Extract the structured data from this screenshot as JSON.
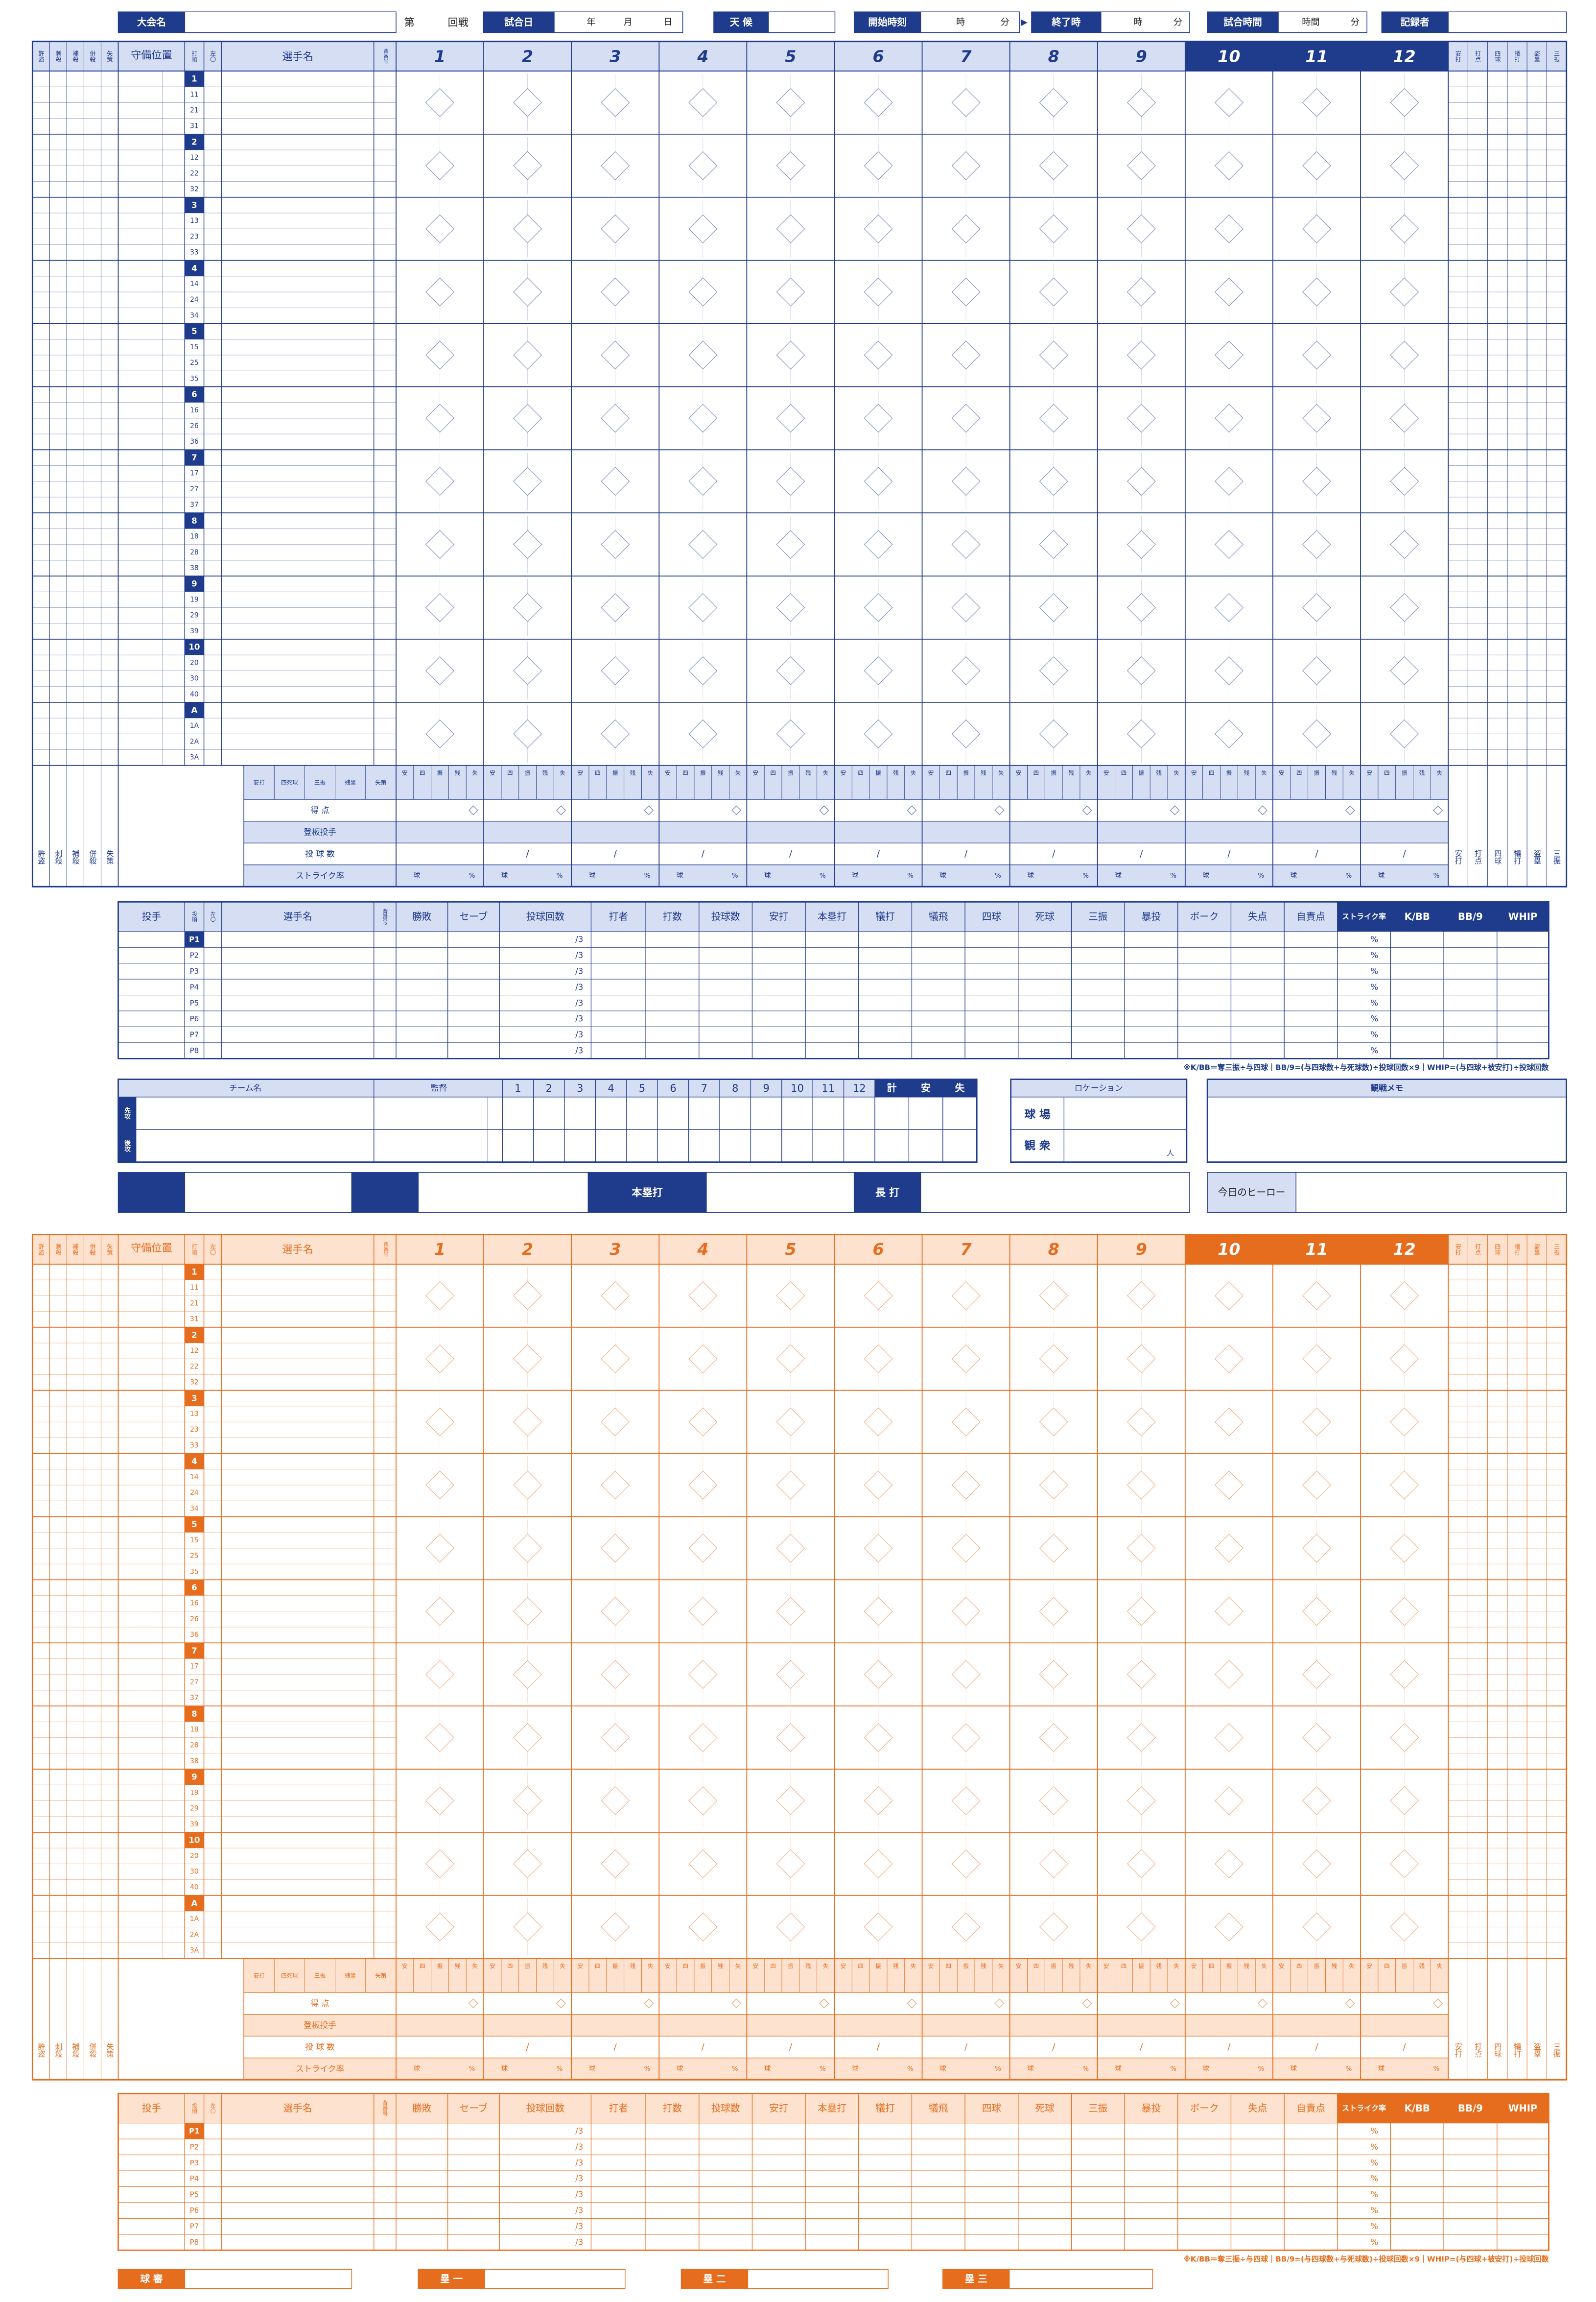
{
  "header": {
    "tournament": "大会名",
    "round_prefix": "第",
    "round_suffix": "回戦",
    "date": "試合日",
    "year": "年",
    "month": "月",
    "day": "日",
    "weather": "天 候",
    "start": "開始時刻",
    "hour": "時",
    "minute": "分",
    "arrow": "▶",
    "end": "終了時",
    "duration": "試合時間",
    "duration_hour": "時間",
    "recorder": "記録者"
  },
  "sheets": [
    {
      "color": "#1f3b8c",
      "fill": "#d5def2"
    },
    {
      "color": "#e66d1e",
      "fill": "#fde2cf"
    }
  ],
  "scoresheet": {
    "fielding_cols": [
      "許盗",
      "刺殺",
      "補殺",
      "併殺",
      "失策"
    ],
    "position": "守備位置",
    "order": "打順",
    "lefty": "左〇",
    "player": "選手名",
    "number": "背番号",
    "innings": [
      "1",
      "2",
      "3",
      "4",
      "5",
      "6",
      "7",
      "8",
      "9",
      "10",
      "11",
      "12"
    ],
    "stats_cols": [
      "安打",
      "打点",
      "四球",
      "犠打",
      "盗塁",
      "三振"
    ],
    "orders": [
      {
        "label": "1",
        "subs": [
          "11",
          "21",
          "31"
        ]
      },
      {
        "label": "2",
        "subs": [
          "12",
          "22",
          "32"
        ]
      },
      {
        "label": "3",
        "subs": [
          "13",
          "23",
          "33"
        ]
      },
      {
        "label": "4",
        "subs": [
          "14",
          "24",
          "34"
        ]
      },
      {
        "label": "5",
        "subs": [
          "15",
          "25",
          "35"
        ]
      },
      {
        "label": "6",
        "subs": [
          "16",
          "26",
          "36"
        ]
      },
      {
        "label": "7",
        "subs": [
          "17",
          "27",
          "37"
        ]
      },
      {
        "label": "8",
        "subs": [
          "18",
          "28",
          "38"
        ]
      },
      {
        "label": "9",
        "subs": [
          "19",
          "29",
          "39"
        ]
      },
      {
        "label": "10",
        "subs": [
          "20",
          "30",
          "40"
        ]
      },
      {
        "label": "A",
        "subs": [
          "1A",
          "2A",
          "3A"
        ]
      }
    ],
    "left_summary_cols": [
      "安打",
      "四死球",
      "三振",
      "残塁",
      "失策"
    ],
    "inning_summary_cols": [
      "安",
      "四",
      "振",
      "残",
      "失"
    ],
    "summary_rows": [
      "得 点",
      "登板投手",
      "投 球 数",
      "ストライク率"
    ],
    "slash": "/",
    "ball_unit": "球",
    "percent": "%"
  },
  "pitching": {
    "headers": [
      "投手",
      "投順",
      "左〇",
      "選手名",
      "背番号",
      "勝敗",
      "セーブ",
      "投球回数",
      "打者",
      "打数",
      "投球数",
      "安打",
      "本塁打",
      "犠打",
      "犠飛",
      "四球",
      "死球",
      "三振",
      "暴投",
      "ボーク",
      "失点",
      "自責点",
      "ストライク率",
      "K/BB",
      "BB/9",
      "WHIP"
    ],
    "rows": [
      "P1",
      "P2",
      "P3",
      "P4",
      "P5",
      "P6",
      "P7",
      "P8"
    ],
    "innings_suffix": "/3",
    "percent": "%",
    "footnote": "※K/BB＝奪三振÷与四球｜BB/9=(与四球数+与死球数)÷投球回数×9｜WHIP=(与四球+被安打)÷投球回数"
  },
  "scoreboard": {
    "team": "チーム名",
    "manager": "監督",
    "innings": [
      "1",
      "2",
      "3",
      "4",
      "5",
      "6",
      "7",
      "8",
      "9",
      "10",
      "11",
      "12"
    ],
    "total": "計",
    "hits": "安",
    "errors": "失",
    "first": "先攻",
    "second": "後攻"
  },
  "location": {
    "title": "ロケーション",
    "stadium": "球 場",
    "attendance": "観 衆",
    "person": "人"
  },
  "memo": "観戦メモ",
  "highlights": {
    "homerun": "本塁打",
    "extra_base": "長 打",
    "hero": "今日のヒーロー"
  },
  "umpires": [
    "球 審",
    "塁 一",
    "塁 二",
    "塁 三"
  ]
}
